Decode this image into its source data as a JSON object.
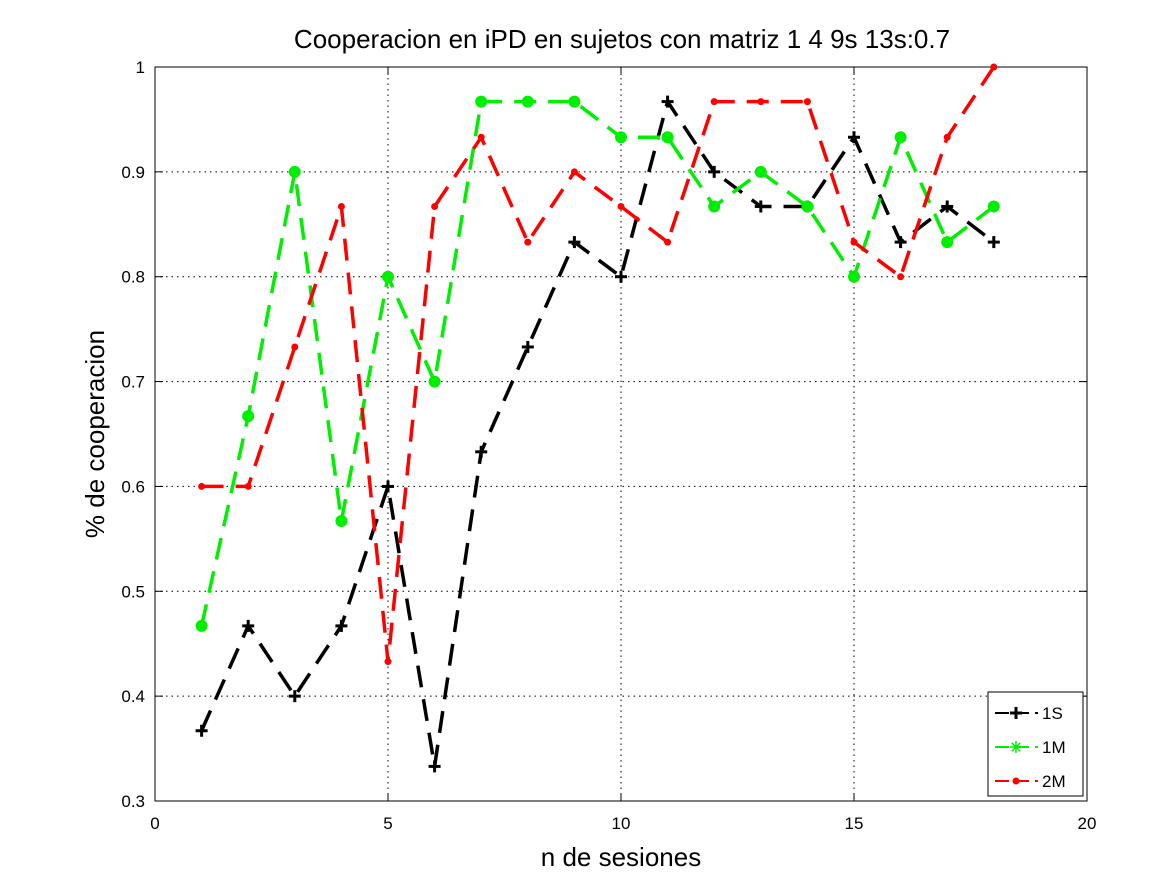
{
  "chart_data": {
    "type": "line",
    "title": "Cooperacion en iPD en sujetos con matriz 1 4 9s 13s:0.7",
    "xlabel": "n de sesiones",
    "ylabel": "% de cooperacion",
    "xlim": [
      0,
      20
    ],
    "ylim": [
      0.3,
      1
    ],
    "xticks": [
      0,
      5,
      10,
      15,
      20
    ],
    "yticks": [
      0.3,
      0.4,
      0.5,
      0.6,
      0.7,
      0.8,
      0.9,
      1
    ],
    "xtick_labels": [
      "0",
      "5",
      "10",
      "15",
      "20"
    ],
    "ytick_labels": [
      "0.3",
      "0.4",
      "0.5",
      "0.6",
      "0.7",
      "0.8",
      "0.9",
      "1"
    ],
    "grid": true,
    "legend_position": "bottom-right",
    "x": [
      1,
      2,
      3,
      4,
      5,
      6,
      7,
      8,
      9,
      10,
      11,
      12,
      13,
      14,
      15,
      16,
      17,
      18
    ],
    "series": [
      {
        "name": "1S",
        "color": "#000000",
        "marker": "plus",
        "values": [
          0.367,
          0.467,
          0.4,
          0.467,
          0.6,
          0.333,
          0.633,
          0.733,
          0.833,
          0.8,
          0.967,
          0.9,
          0.867,
          0.867,
          0.933,
          0.833,
          0.867,
          0.833
        ]
      },
      {
        "name": "1M",
        "color": "#00ee00",
        "marker": "circle",
        "values": [
          0.467,
          0.667,
          0.9,
          0.567,
          0.8,
          0.7,
          0.967,
          0.967,
          0.967,
          0.933,
          0.933,
          0.867,
          0.9,
          0.867,
          0.8,
          0.933,
          0.833,
          0.867
        ]
      },
      {
        "name": "2M",
        "color": "#ff0000",
        "marker": "dot",
        "values": [
          0.6,
          0.6,
          0.733,
          0.867,
          0.433,
          0.867,
          0.933,
          0.833,
          0.9,
          0.867,
          0.833,
          0.967,
          0.967,
          0.967,
          0.833,
          0.8,
          0.933,
          1.0
        ]
      }
    ]
  }
}
